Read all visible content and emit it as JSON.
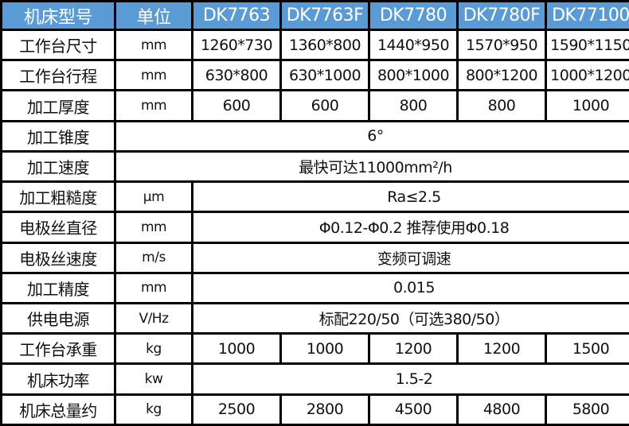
{
  "header": [
    "机床型号",
    "单位",
    "DK7763",
    "DK7763F",
    "DK7780",
    "DK7780F",
    "DK77100"
  ],
  "colors": {
    "header_bg": "#5b9bd5",
    "header_text": "#ffffff",
    "border": "#000000"
  },
  "rows": [
    {
      "name": "工作台尺寸",
      "unit": "mm",
      "values": [
        "1260*730",
        "1360*800",
        "1440*950",
        "1570*950",
        "1590*1150"
      ]
    },
    {
      "name": "工作台行程",
      "unit": "mm",
      "values": [
        "630*800",
        "630*1000",
        "800*1000",
        "800*1200",
        "1000*1200"
      ]
    },
    {
      "name": "加工厚度",
      "unit": "mm",
      "values": [
        "600",
        "600",
        "800",
        "800",
        "1000"
      ]
    },
    {
      "name": "加工锥度",
      "merged": "6°"
    },
    {
      "name": "加工速度",
      "merged": "最快可达11000mm²/h"
    },
    {
      "name": "加工粗糙度",
      "unit": "μm",
      "merged": "Ra≤2.5"
    },
    {
      "name": "电极丝直径",
      "unit": "mm",
      "merged": "Φ0.12-Φ0.2 推荐使用Φ0.18"
    },
    {
      "name": "电极丝速度",
      "unit": "m/s",
      "merged": "变频可调速"
    },
    {
      "name": "加工精度",
      "unit": "mm",
      "merged": "0.015"
    },
    {
      "name": "供电电源",
      "unit": "V/Hz",
      "merged": "标配220/50（可选380/50）"
    },
    {
      "name": "工作台承重",
      "unit": "kg",
      "values": [
        "1000",
        "1000",
        "1200",
        "1200",
        "1500"
      ]
    },
    {
      "name": "机床功率",
      "unit": "kw",
      "merged": "1.5-2"
    },
    {
      "name": "机床总量约",
      "unit": "kg",
      "values": [
        "2500",
        "2800",
        "4500",
        "4800",
        "5800"
      ]
    }
  ]
}
